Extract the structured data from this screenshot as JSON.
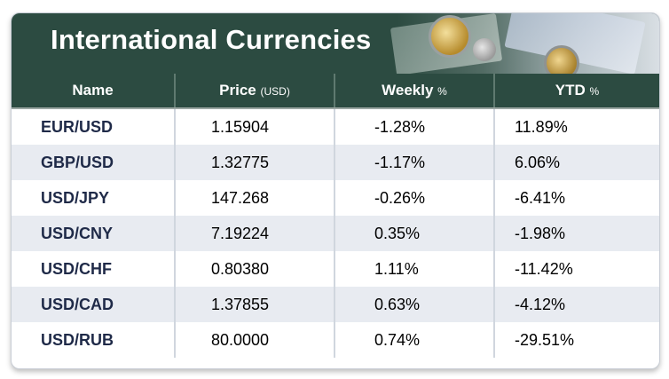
{
  "header": {
    "title": "International Currencies"
  },
  "columns": {
    "name": "Name",
    "price": "Price",
    "price_unit": "(USD)",
    "weekly": "Weekly",
    "weekly_unit": "%",
    "ytd": "YTD",
    "ytd_unit": "%"
  },
  "rows": [
    {
      "name": "EUR/USD",
      "price": "1.15904",
      "weekly": "-1.28%",
      "ytd": "11.89%"
    },
    {
      "name": "GBP/USD",
      "price": "1.32775",
      "weekly": "-1.17%",
      "ytd": "6.06%"
    },
    {
      "name": "USD/JPY",
      "price": "147.268",
      "weekly": "-0.26%",
      "ytd": "-6.41%"
    },
    {
      "name": "USD/CNY",
      "price": "7.19224",
      "weekly": "0.35%",
      "ytd": "-1.98%"
    },
    {
      "name": "USD/CHF",
      "price": "0.80380",
      "weekly": "1.11%",
      "ytd": "-11.42%"
    },
    {
      "name": "USD/CAD",
      "price": "1.37855",
      "weekly": "0.63%",
      "ytd": "-4.12%"
    },
    {
      "name": "USD/RUB",
      "price": "80.0000",
      "weekly": "0.74%",
      "ytd": "-29.51%"
    }
  ],
  "colors": {
    "header_bg": "#2c4b41",
    "alt_row_bg": "#e8ebf1",
    "name_text": "#1f2a48"
  }
}
